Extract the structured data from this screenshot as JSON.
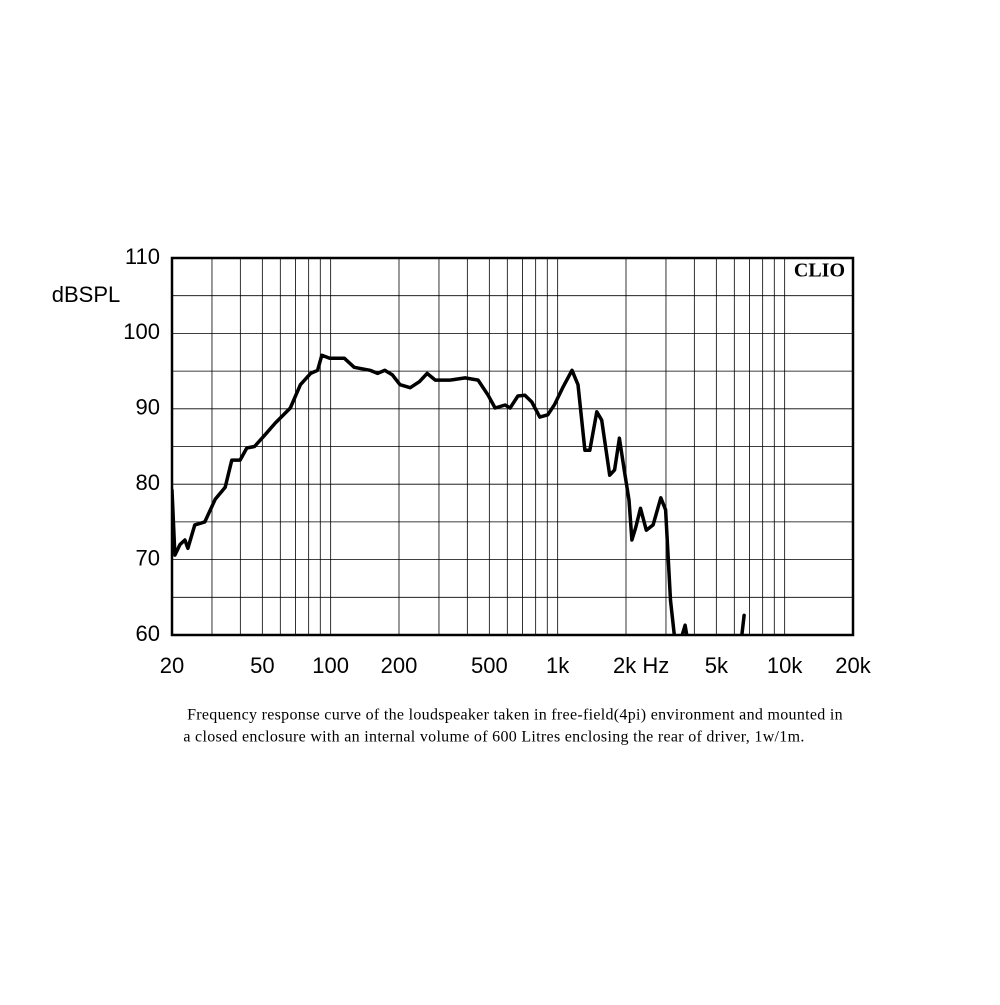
{
  "chart_data": {
    "type": "line",
    "y_label": "dBSPL",
    "annotation": "CLIO",
    "caption": [
      "Frequency response curve of the loudspeaker taken in free-field(4pi) environment and mounted in",
      "a closed enclosure  with an internal volume of 600 Litres enclosing the rear of driver, 1w/1m."
    ],
    "x_log": true,
    "xlim": [
      20,
      20000
    ],
    "ylim": [
      60,
      110
    ],
    "xticks": [
      20,
      50,
      100,
      200,
      500,
      {
        "value": 1000,
        "label": "1k"
      },
      {
        "value": 2000,
        "label": "2k Hz"
      },
      {
        "value": 5000,
        "label": "5k"
      },
      {
        "value": 10000,
        "label": "10k"
      },
      {
        "value": 20000,
        "label": "20k"
      }
    ],
    "yticks": [
      60,
      70,
      80,
      90,
      100,
      110
    ],
    "xgrid": [
      30,
      40,
      60,
      70,
      80,
      90,
      300,
      400,
      600,
      700,
      800,
      900,
      3000,
      4000,
      6000,
      7000,
      8000,
      9000
    ],
    "ygrid": [
      65,
      75,
      85,
      95,
      105
    ],
    "grid": true,
    "series": [
      {
        "name": null,
        "color": "#000000",
        "x": [
          20,
          20.6,
          21.7,
          22.8,
          23.5,
          25.2,
          27.9,
          31,
          34.3,
          36.7,
          39.9,
          42.7,
          46.2,
          51.2,
          57,
          66.4,
          73.6,
          81.6,
          87.6,
          91.4,
          99,
          115,
          127,
          149,
          161,
          173,
          187,
          202,
          224,
          246,
          266,
          289,
          336,
          391,
          446,
          494,
          530,
          587,
          617,
          668,
          717,
          769,
          834,
          905,
          970,
          1052,
          1156,
          1229,
          1318,
          1386,
          1488,
          1563,
          1695,
          1781,
          1870,
          1963,
          2061,
          2124,
          2208,
          2318,
          2458,
          2634,
          2846,
          2989,
          3140,
          3265,
          3458,
          3641,
          3752,
          6226,
          6424,
          6630
        ],
        "values": [
          79.2,
          70.6,
          72,
          72.6,
          71.5,
          74.6,
          75,
          78,
          79.6,
          83.2,
          83.2,
          84.8,
          85,
          86.5,
          88.1,
          90.1,
          93.2,
          94.7,
          95.1,
          97.1,
          96.7,
          96.7,
          95.5,
          95.1,
          94.7,
          95.1,
          94.5,
          93.2,
          92.8,
          93.6,
          94.7,
          93.8,
          93.8,
          94.1,
          93.8,
          91.8,
          90.1,
          90.5,
          90.1,
          91.7,
          91.8,
          90.9,
          88.9,
          89.2,
          90.6,
          92.8,
          95.1,
          93.2,
          84.5,
          84.5,
          89.6,
          88.5,
          81.2,
          81.9,
          86.1,
          81.9,
          77.9,
          72.6,
          74.3,
          76.8,
          73.9,
          74.6,
          78.2,
          76.6,
          64.6,
          60,
          59,
          61.3,
          59,
          null,
          59,
          62.6
        ]
      }
    ]
  }
}
